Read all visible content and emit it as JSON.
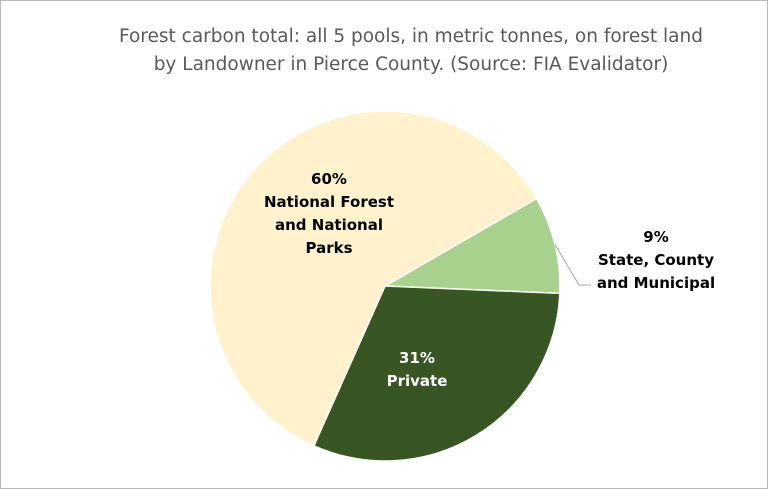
{
  "chart_data": {
    "type": "pie",
    "title": [
      "Forest carbon total: all 5 pools, in metric tonnes, on forest land",
      "by Landowner in Pierce County.  (Source: FIA Evalidator)"
    ],
    "slices": [
      {
        "label_lines": [
          "9%",
          "State, County",
          "and Municipal"
        ],
        "value": 9,
        "color": "#a9d18e",
        "label_color": "#000000"
      },
      {
        "label_lines": [
          "31%",
          "Private"
        ],
        "value": 31,
        "color": "#375623",
        "label_color": "#ffffff"
      },
      {
        "label_lines": [
          "60%",
          "National Forest",
          "and National",
          "Parks"
        ],
        "value": 60,
        "color": "#fff2cc",
        "label_color": "#000000"
      }
    ],
    "legend": "none",
    "leader_line_color": "#a6a6a6"
  }
}
